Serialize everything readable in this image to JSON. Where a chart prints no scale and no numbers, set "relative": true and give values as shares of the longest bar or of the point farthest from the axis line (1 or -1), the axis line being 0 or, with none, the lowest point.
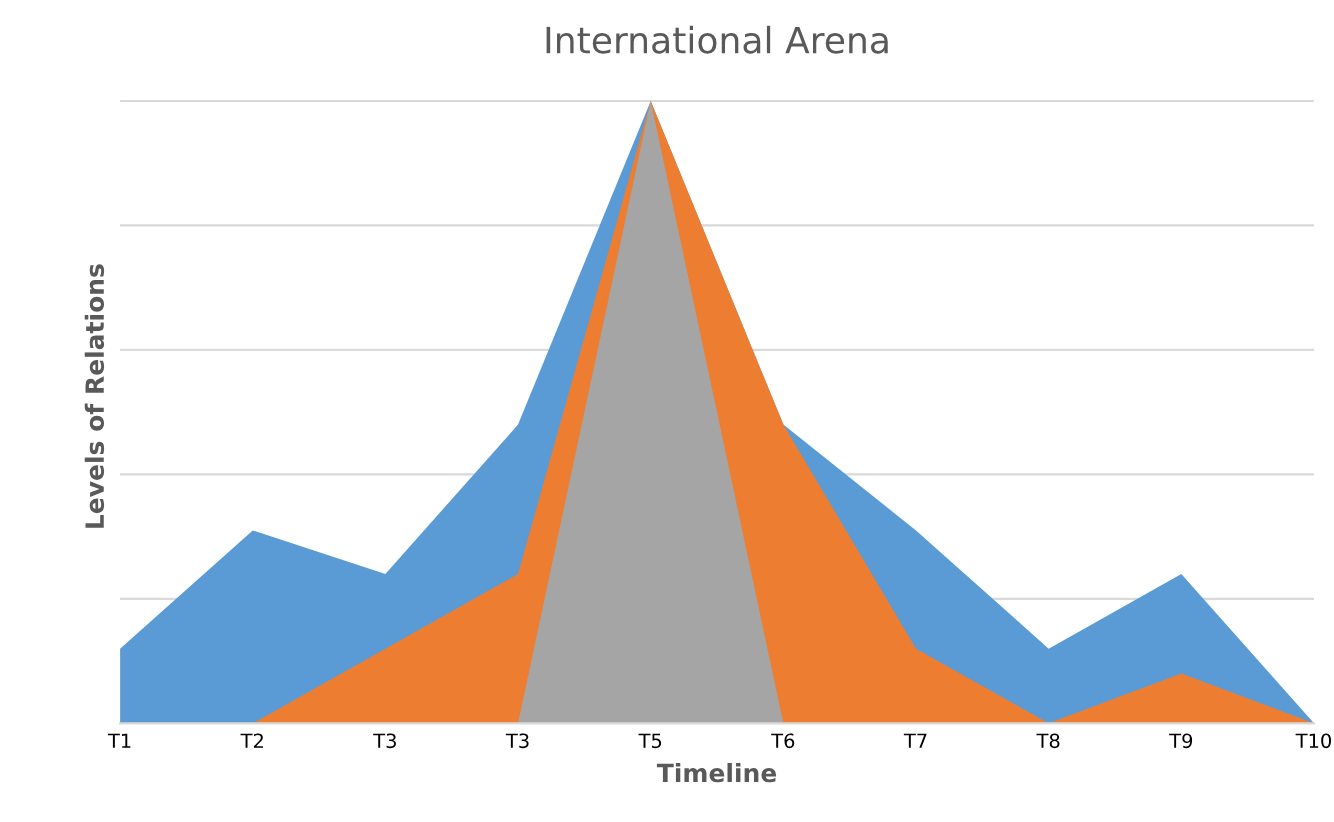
{
  "chart_data": {
    "type": "area",
    "title": "International Arena",
    "xlabel": "Timeline",
    "ylabel": "Levels of Relations",
    "relative": true,
    "grid": "y",
    "categories": [
      "T1",
      "T2",
      "T3",
      "T3",
      "T5",
      "T6",
      "T7",
      "T8",
      "T9",
      "T10"
    ],
    "series": [
      {
        "color": "#5b9bd5",
        "values": [
          0.12,
          0.31,
          0.24,
          0.48,
          1,
          0.48,
          0.31,
          0.12,
          0.24,
          0
        ]
      },
      {
        "color": "#ed7d31",
        "values": [
          null,
          0,
          0.12,
          0.24,
          1,
          0.48,
          0.12,
          0,
          0.08,
          0
        ]
      },
      {
        "color": "#a5a5a5",
        "values": [
          null,
          null,
          null,
          0,
          1,
          0,
          null,
          null,
          null,
          null
        ]
      }
    ]
  }
}
